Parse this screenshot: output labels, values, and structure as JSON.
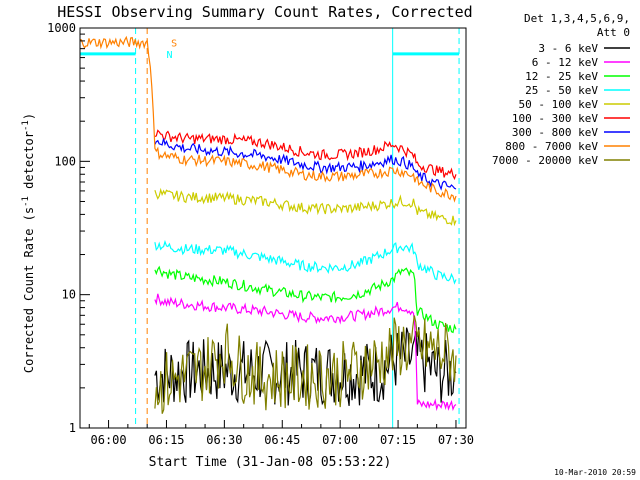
{
  "chart_data": {
    "type": "line",
    "title": "HESSI Observing Summary Count Rates, Corrected",
    "xlabel": "Start Time (31-Jan-08 05:53:22)",
    "ylabel_main": "Corrected Count Rate (s",
    "ylabel_sup1": "-1",
    "ylabel_mid": " detector",
    "ylabel_sup2": "-1",
    "ylabel_end": ")",
    "yscale": "log",
    "ylim": [
      1,
      1000
    ],
    "xlim_minutes": [
      -7.4,
      92.6
    ],
    "x_tick_labels": [
      "06:00",
      "06:15",
      "06:30",
      "06:45",
      "07:00",
      "07:15",
      "07:30"
    ],
    "x_tick_minutes": [
      0,
      15,
      30,
      45,
      60,
      75,
      90
    ],
    "y_tick_labels": [
      "1",
      "10",
      "100",
      "1000"
    ],
    "y_tick_values": [
      1,
      10,
      100,
      1000
    ],
    "legend": {
      "header1": "Det 1,3,4,5,6,9,",
      "header2": "Att 0",
      "placement": "right"
    },
    "flag_labels": [
      {
        "text": "S",
        "color": "#ff8000",
        "minute": 16.2,
        "level": 780
      },
      {
        "text": "N",
        "color": "#00ffff",
        "minute": 15.0,
        "level": 640
      }
    ],
    "vertical_markers": [
      {
        "minute": 7.0,
        "style": "dashed",
        "color": "#00ffff"
      },
      {
        "minute": 10.0,
        "style": "dashed",
        "color": "#ff8000"
      },
      {
        "minute": 73.6,
        "style": "solid",
        "color": "#00ffff"
      },
      {
        "minute": 90.8,
        "style": "dashed",
        "color": "#00ffff"
      }
    ],
    "series": [
      {
        "name": "3 - 6 keV",
        "color": "#000000",
        "x": [
          12,
          20,
          30,
          40,
          50,
          60,
          70,
          73.6,
          76,
          80,
          85,
          90
        ],
        "y": [
          2.5,
          2.6,
          2.7,
          2.6,
          2.6,
          2.6,
          2.6,
          3.2,
          3.3,
          3.3,
          2.6,
          2.6
        ]
      },
      {
        "name": "6 - 12 keV",
        "color": "#ff00ff",
        "x": [
          12,
          15,
          20,
          30,
          40,
          50,
          55,
          60,
          65,
          70,
          73.6,
          76,
          79,
          80,
          85,
          90
        ],
        "y": [
          9.5,
          8.8,
          8.5,
          8.0,
          7.5,
          6.8,
          6.7,
          6.8,
          7.0,
          7.5,
          8.0,
          8.2,
          7.5,
          1.5,
          1.5,
          1.5
        ]
      },
      {
        "name": "12 - 25 keV",
        "color": "#00ff00",
        "x": [
          12,
          15,
          20,
          30,
          40,
          50,
          55,
          60,
          65,
          70,
          73.6,
          76,
          79,
          80,
          85,
          90
        ],
        "y": [
          16,
          14.5,
          13.5,
          12.5,
          11.0,
          9.8,
          9.5,
          9.6,
          10.2,
          11.5,
          13,
          15,
          14,
          7.5,
          6,
          5.5
        ]
      },
      {
        "name": "25 - 50 keV",
        "color": "#00ffff",
        "x": [
          12,
          15,
          20,
          30,
          40,
          50,
          55,
          60,
          65,
          70,
          73.6,
          76,
          79,
          80,
          85,
          90
        ],
        "y": [
          24,
          23,
          22,
          21.5,
          19,
          16.5,
          16,
          16,
          17,
          19.5,
          22,
          23,
          22,
          17,
          14,
          13
        ]
      },
      {
        "name": "50 - 100 keV",
        "color": "#cccc00",
        "x": [
          12,
          15,
          20,
          30,
          40,
          50,
          55,
          60,
          65,
          70,
          73.6,
          76,
          79,
          80,
          85,
          90
        ],
        "y": [
          58,
          56,
          54,
          53,
          50,
          45,
          44,
          44,
          45,
          47,
          49,
          50,
          49,
          42,
          38,
          36
        ]
      },
      {
        "name": "100 - 300 keV",
        "color": "#ff0000",
        "x": [
          12,
          15,
          20,
          30,
          40,
          50,
          55,
          60,
          65,
          70,
          73.6,
          76,
          79,
          80,
          85,
          90
        ],
        "y": [
          165,
          155,
          148,
          147,
          138,
          118,
          112,
          112,
          116,
          124,
          135,
          125,
          110,
          95,
          85,
          80
        ]
      },
      {
        "name": "300 - 800 keV",
        "color": "#0000ff",
        "x": [
          12,
          15,
          20,
          30,
          40,
          50,
          55,
          60,
          65,
          70,
          73.6,
          76,
          79,
          80,
          85,
          90
        ],
        "y": [
          145,
          135,
          125,
          118,
          110,
          95,
          90,
          90,
          92,
          98,
          104,
          100,
          90,
          78,
          68,
          62
        ]
      },
      {
        "name": "800 - 7000 keV",
        "color": "#ff8000",
        "x": [
          -7.4,
          10,
          12,
          15,
          20,
          30,
          40,
          50,
          55,
          60,
          65,
          70,
          73.6,
          76,
          79,
          80,
          85,
          90
        ],
        "y": [
          780,
          780,
          118,
          110,
          103,
          100,
          92,
          80,
          77,
          77,
          79,
          82,
          86,
          84,
          78,
          70,
          60,
          55
        ]
      },
      {
        "name": "7000 - 20000 keV",
        "color": "#808000",
        "x": [
          12,
          20,
          25,
          30,
          35,
          40,
          50,
          60,
          70,
          73.6,
          76,
          80,
          85,
          90
        ],
        "y": [
          2.0,
          2.5,
          2.8,
          3.8,
          2.7,
          2.4,
          2.4,
          2.5,
          3.2,
          3.8,
          4.2,
          4.0,
          3.8,
          3.5
        ]
      }
    ],
    "grid": false,
    "footer_date": "10-Mar-2010 20:59"
  }
}
